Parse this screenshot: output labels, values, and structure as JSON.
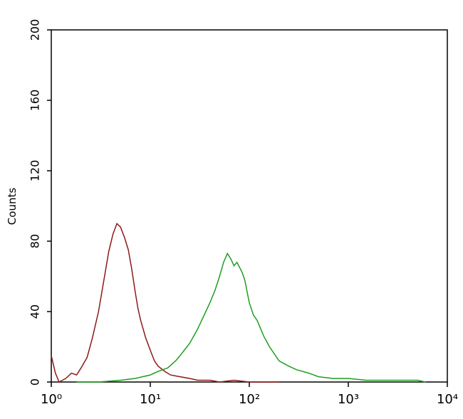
{
  "chart_data": {
    "type": "line",
    "y_label": "Counts",
    "xscale": "log",
    "xlim": [
      1,
      10000
    ],
    "xticks": [
      {
        "value": 1,
        "label": "10⁰"
      },
      {
        "value": 10,
        "label": "10¹"
      },
      {
        "value": 100,
        "label": "10²"
      },
      {
        "value": 1000,
        "label": "10³"
      },
      {
        "value": 10000,
        "label": "10⁴"
      }
    ],
    "ylim": [
      0,
      200
    ],
    "yticks": [
      0,
      40,
      80,
      120,
      160,
      200
    ],
    "series": [
      {
        "color": "#8b1a1a",
        "x": [
          1,
          1.1,
          1.2,
          1.4,
          1.6,
          1.8,
          2,
          2.3,
          2.6,
          3,
          3.4,
          3.8,
          4.2,
          4.6,
          5,
          5.5,
          6,
          6.5,
          7,
          7.5,
          8,
          9,
          10,
          11,
          12,
          14,
          16,
          20,
          25,
          30,
          40,
          50,
          70,
          100,
          150,
          200
        ],
        "values": [
          15,
          5,
          0,
          2,
          5,
          4,
          8,
          14,
          25,
          40,
          58,
          74,
          84,
          90,
          88,
          82,
          75,
          64,
          52,
          42,
          35,
          25,
          18,
          12,
          9,
          6,
          4,
          3,
          2,
          1,
          1,
          0,
          1,
          0,
          0,
          0
        ]
      },
      {
        "color": "#1e9e1e",
        "x": [
          1.8,
          3,
          5,
          7,
          10,
          12,
          15,
          18,
          20,
          25,
          30,
          35,
          40,
          45,
          50,
          55,
          60,
          65,
          70,
          75,
          80,
          85,
          90,
          100,
          110,
          120,
          140,
          160,
          200,
          250,
          300,
          400,
          500,
          700,
          1000,
          1500,
          2000,
          3000,
          5000,
          6000
        ],
        "values": [
          0,
          0,
          1,
          2,
          4,
          6,
          8,
          12,
          15,
          22,
          30,
          38,
          45,
          52,
          60,
          68,
          73,
          70,
          66,
          68,
          65,
          62,
          58,
          45,
          38,
          35,
          26,
          20,
          12,
          9,
          7,
          5,
          3,
          2,
          2,
          1,
          1,
          1,
          1,
          0
        ]
      }
    ]
  }
}
